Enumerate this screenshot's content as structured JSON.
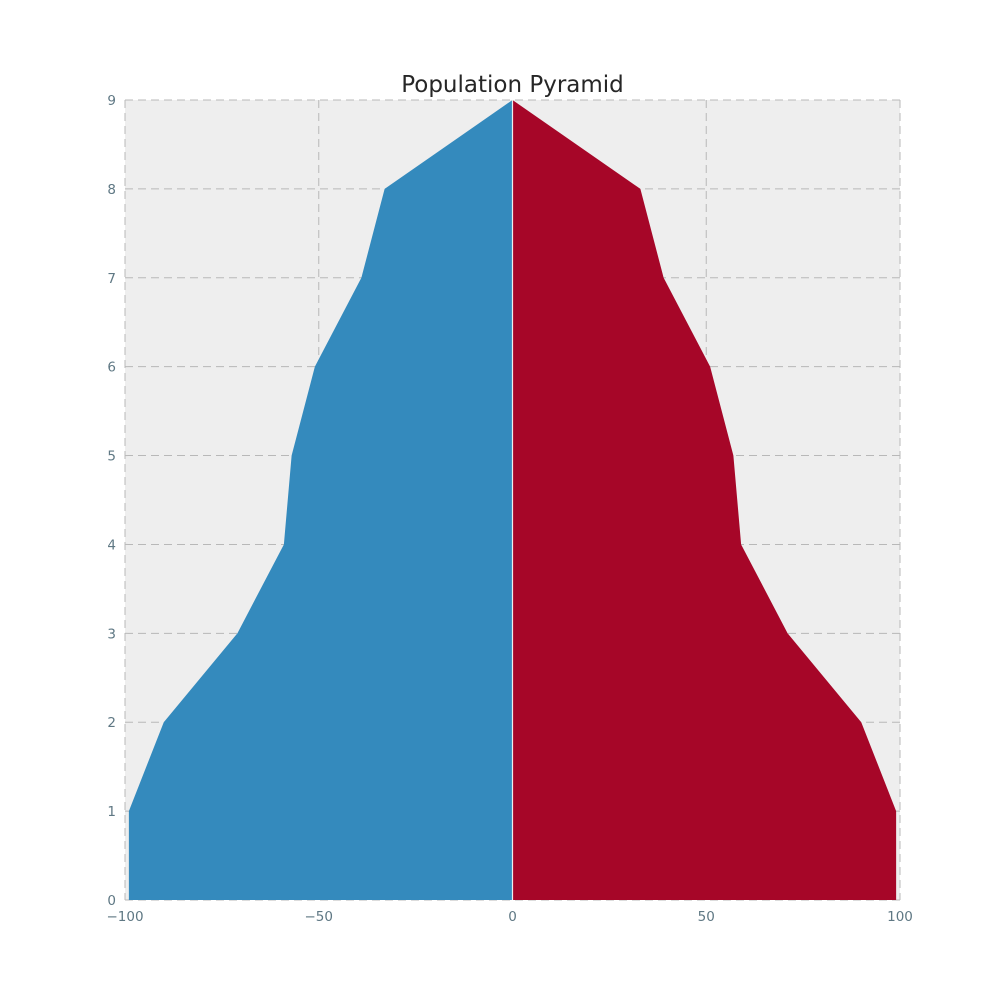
{
  "chart_data": {
    "type": "area",
    "title": "Population Pyramid",
    "xlabel": "",
    "ylabel": "",
    "xlim": [
      -100,
      100
    ],
    "ylim": [
      0,
      9
    ],
    "x_ticks": [
      -100,
      -50,
      0,
      50,
      100
    ],
    "x_tick_labels": [
      "−100",
      "−50",
      "0",
      "50",
      "100"
    ],
    "y_ticks": [
      0,
      1,
      2,
      3,
      4,
      5,
      6,
      7,
      8,
      9
    ],
    "y_tick_labels": [
      "0",
      "1",
      "2",
      "3",
      "4",
      "5",
      "6",
      "7",
      "8",
      "9"
    ],
    "grid": true,
    "y": [
      0,
      1,
      2,
      3,
      4,
      5,
      6,
      7,
      8,
      9
    ],
    "series": [
      {
        "side": "left",
        "color": "#348abd",
        "values": [
          -99,
          -99,
          -90,
          -71,
          -59,
          -57,
          -51,
          -39,
          -33,
          0
        ]
      },
      {
        "side": "right",
        "color": "#a60628",
        "values": [
          99,
          99,
          90,
          71,
          59,
          57,
          51,
          39,
          33,
          0
        ]
      }
    ],
    "colors": {
      "axes_background": "#eeeeee",
      "tick_color": "#5f7884"
    }
  }
}
